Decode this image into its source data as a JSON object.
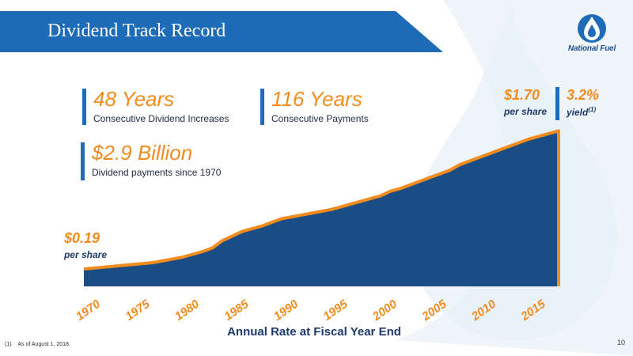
{
  "slide": {
    "title": "Dividend Track Record",
    "page_number": "10",
    "footnote_marker": "(1)",
    "footnote_text": "As of August 1, 2018."
  },
  "logo": {
    "text": "National Fuel",
    "icon": "flame-drop-icon"
  },
  "stats": [
    {
      "value": "48 Years",
      "label": "Consecutive Dividend Increases"
    },
    {
      "value": "116 Years",
      "label": "Consecutive Payments"
    },
    {
      "value": "$2.9 Billion",
      "label": "Dividend payments since 1970"
    }
  ],
  "annotations": {
    "start_value": "$0.19",
    "start_sub": "per share",
    "end_value": "$1.70",
    "end_sub": "per share",
    "yield_value": "3.2%",
    "yield_sub": "yield",
    "yield_sup": "(1)"
  },
  "colors": {
    "accent_blue": "#1e6bb8",
    "area_fill": "#1a4d84",
    "orange": "#f28c1e",
    "dark_navy": "#1e3a6b"
  },
  "chart_data": {
    "type": "area",
    "xlabel": "Annual Rate at Fiscal Year End",
    "x_ticks": [
      1970,
      1975,
      1980,
      1985,
      1990,
      1995,
      2000,
      2005,
      2010,
      2015
    ],
    "xlim": [
      1970,
      2018
    ],
    "ylim": [
      0,
      1.85
    ],
    "grid": false,
    "series": [
      {
        "x": [
          1970,
          1971,
          1972,
          1973,
          1974,
          1975,
          1976,
          1977,
          1978,
          1979,
          1980,
          1981,
          1982,
          1983,
          1984,
          1985,
          1986,
          1987,
          1988,
          1989,
          1990,
          1991,
          1992,
          1993,
          1994,
          1995,
          1996,
          1997,
          1998,
          1999,
          2000,
          2001,
          2002,
          2003,
          2004,
          2005,
          2006,
          2007,
          2008,
          2009,
          2010,
          2011,
          2012,
          2013,
          2014,
          2015,
          2016,
          2017,
          2018
        ],
        "values": [
          0.19,
          0.2,
          0.21,
          0.22,
          0.23,
          0.24,
          0.25,
          0.26,
          0.28,
          0.3,
          0.32,
          0.35,
          0.38,
          0.42,
          0.5,
          0.55,
          0.6,
          0.63,
          0.66,
          0.7,
          0.74,
          0.76,
          0.78,
          0.8,
          0.82,
          0.84,
          0.87,
          0.9,
          0.93,
          0.96,
          0.99,
          1.04,
          1.07,
          1.11,
          1.15,
          1.19,
          1.23,
          1.27,
          1.33,
          1.37,
          1.41,
          1.45,
          1.49,
          1.53,
          1.57,
          1.61,
          1.64,
          1.67,
          1.7
        ]
      }
    ]
  }
}
